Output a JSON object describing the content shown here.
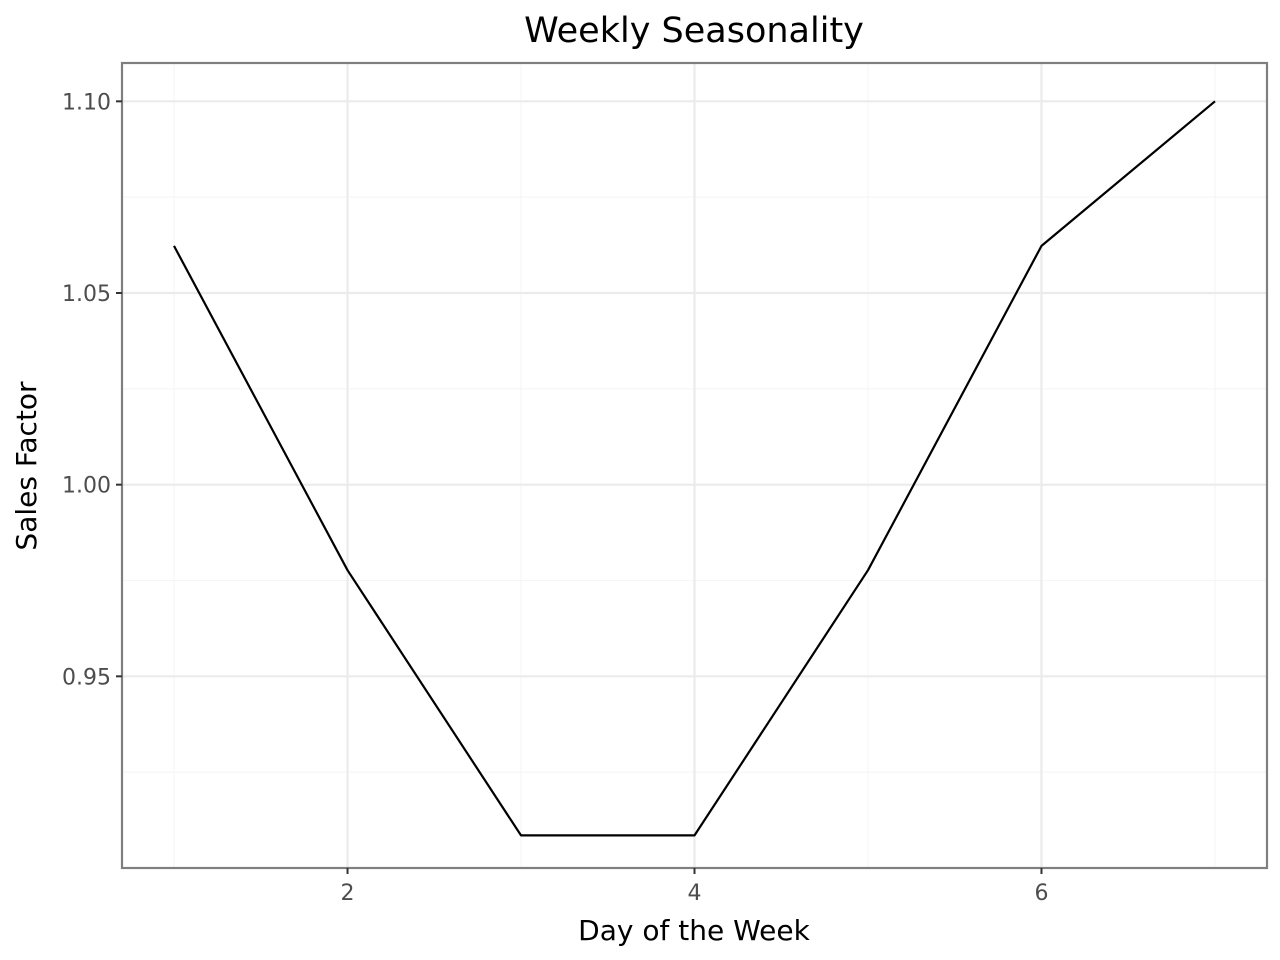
{
  "chart_data": {
    "type": "line",
    "title": "Weekly Seasonality",
    "xlabel": "Day of the Week",
    "ylabel": "Sales Factor",
    "x": [
      1,
      2,
      3,
      4,
      5,
      6,
      7
    ],
    "series": [
      {
        "values": [
          1.0623,
          0.9777,
          0.9085,
          0.9085,
          0.9777,
          1.0623,
          1.1
        ]
      }
    ],
    "xlim": [
      0.7,
      7.3
    ],
    "ylim": [
      0.9,
      1.11
    ],
    "x_ticks": [
      2,
      4,
      6
    ],
    "x_tick_labels": [
      "2",
      "4",
      "6"
    ],
    "x_minor_ticks": [
      1,
      3,
      5,
      7
    ],
    "y_ticks": [
      0.95,
      1.0,
      1.05,
      1.1
    ],
    "y_tick_labels": [
      "0.95",
      "1.00",
      "1.05",
      "1.10"
    ],
    "y_minor_ticks": [
      0.925,
      0.975,
      1.025,
      1.075
    ],
    "grid": true,
    "legend": "none",
    "line_color": "#000000",
    "background": "#ffffff",
    "grid_color": "#ebebeb",
    "border_color": "#7f7f7f"
  }
}
